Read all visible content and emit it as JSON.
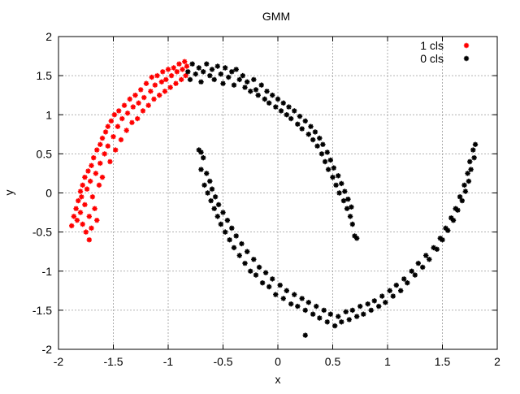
{
  "chart_data": {
    "type": "scatter",
    "title": "GMM",
    "xlabel": "x",
    "ylabel": "y",
    "xlim": [
      -2,
      2
    ],
    "ylim": [
      -2,
      2
    ],
    "x_ticks": [
      -2,
      -1.5,
      -1,
      -0.5,
      0,
      0.5,
      1,
      1.5,
      2
    ],
    "y_ticks": [
      -2,
      -1.5,
      -1,
      -0.5,
      0,
      0.5,
      1,
      1.5,
      2
    ],
    "grid": true,
    "legend_position": "top-right",
    "series": [
      {
        "name": "1 cls",
        "color": "#ff0000",
        "marker": "star",
        "points": [
          [
            -1.88,
            -0.42
          ],
          [
            -1.86,
            -0.3
          ],
          [
            -1.84,
            -0.2
          ],
          [
            -1.83,
            -0.35
          ],
          [
            -1.82,
            -0.1
          ],
          [
            -1.8,
            -0.25
          ],
          [
            -1.8,
            0.02
          ],
          [
            -1.79,
            -0.05
          ],
          [
            -1.78,
            0.1
          ],
          [
            -1.78,
            -0.4
          ],
          [
            -1.76,
            0.2
          ],
          [
            -1.76,
            -0.15
          ],
          [
            -1.75,
            -0.5
          ],
          [
            -1.74,
            0.05
          ],
          [
            -1.73,
            0.28
          ],
          [
            -1.72,
            -0.6
          ],
          [
            -1.72,
            -0.3
          ],
          [
            -1.71,
            0.15
          ],
          [
            -1.7,
            0.35
          ],
          [
            -1.7,
            -0.45
          ],
          [
            -1.69,
            -0.05
          ],
          [
            -1.68,
            0.45
          ],
          [
            -1.67,
            -0.2
          ],
          [
            -1.66,
            0.25
          ],
          [
            -1.65,
            0.55
          ],
          [
            -1.65,
            -0.35
          ],
          [
            -1.63,
            0.1
          ],
          [
            -1.62,
            0.62
          ],
          [
            -1.62,
            0.38
          ],
          [
            -1.6,
            0.7
          ],
          [
            -1.6,
            0.2
          ],
          [
            -1.58,
            0.5
          ],
          [
            -1.57,
            0.78
          ],
          [
            -1.55,
            0.6
          ],
          [
            -1.55,
            0.85
          ],
          [
            -1.53,
            0.4
          ],
          [
            -1.52,
            0.92
          ],
          [
            -1.5,
            0.72
          ],
          [
            -1.49,
            1.0
          ],
          [
            -1.48,
            0.55
          ],
          [
            -1.46,
            0.85
          ],
          [
            -1.45,
            1.05
          ],
          [
            -1.43,
            0.68
          ],
          [
            -1.42,
            0.95
          ],
          [
            -1.4,
            1.12
          ],
          [
            -1.38,
            0.8
          ],
          [
            -1.37,
            1.02
          ],
          [
            -1.35,
            1.2
          ],
          [
            -1.33,
            0.9
          ],
          [
            -1.32,
            1.1
          ],
          [
            -1.3,
            1.25
          ],
          [
            -1.28,
            0.95
          ],
          [
            -1.27,
            1.15
          ],
          [
            -1.25,
            1.32
          ],
          [
            -1.23,
            1.05
          ],
          [
            -1.22,
            1.22
          ],
          [
            -1.2,
            1.4
          ],
          [
            -1.18,
            1.12
          ],
          [
            -1.16,
            1.3
          ],
          [
            -1.15,
            1.48
          ],
          [
            -1.13,
            1.2
          ],
          [
            -1.12,
            1.38
          ],
          [
            -1.1,
            1.5
          ],
          [
            -1.08,
            1.25
          ],
          [
            -1.06,
            1.42
          ],
          [
            -1.05,
            1.55
          ],
          [
            -1.03,
            1.3
          ],
          [
            -1.02,
            1.45
          ],
          [
            -1.0,
            1.58
          ],
          [
            -0.98,
            1.35
          ],
          [
            -0.97,
            1.5
          ],
          [
            -0.95,
            1.6
          ],
          [
            -0.93,
            1.4
          ],
          [
            -0.92,
            1.55
          ],
          [
            -0.9,
            1.65
          ],
          [
            -0.88,
            1.45
          ],
          [
            -0.87,
            1.58
          ],
          [
            -0.85,
            1.68
          ],
          [
            -0.84,
            1.5
          ],
          [
            -0.83,
            1.62
          ]
        ]
      },
      {
        "name": "0 cls",
        "color": "#000000",
        "marker": "star",
        "points": [
          [
            -0.82,
            1.55
          ],
          [
            -0.8,
            1.45
          ],
          [
            -0.78,
            1.65
          ],
          [
            -0.75,
            1.52
          ],
          [
            -0.72,
            1.6
          ],
          [
            -0.7,
            1.42
          ],
          [
            -0.68,
            1.55
          ],
          [
            -0.65,
            1.65
          ],
          [
            -0.62,
            1.5
          ],
          [
            -0.6,
            1.58
          ],
          [
            -0.58,
            1.45
          ],
          [
            -0.55,
            1.62
          ],
          [
            -0.52,
            1.52
          ],
          [
            -0.5,
            1.4
          ],
          [
            -0.48,
            1.6
          ],
          [
            -0.45,
            1.48
          ],
          [
            -0.42,
            1.55
          ],
          [
            -0.4,
            1.38
          ],
          [
            -0.38,
            1.58
          ],
          [
            -0.35,
            1.45
          ],
          [
            -0.32,
            1.5
          ],
          [
            -0.3,
            1.35
          ],
          [
            -0.28,
            1.42
          ],
          [
            -0.25,
            1.3
          ],
          [
            -0.22,
            1.45
          ],
          [
            -0.2,
            1.32
          ],
          [
            -0.18,
            1.25
          ],
          [
            -0.15,
            1.38
          ],
          [
            -0.12,
            1.2
          ],
          [
            -0.1,
            1.3
          ],
          [
            -0.08,
            1.15
          ],
          [
            -0.05,
            1.25
          ],
          [
            -0.02,
            1.1
          ],
          [
            0.0,
            1.2
          ],
          [
            0.03,
            1.05
          ],
          [
            0.05,
            1.15
          ],
          [
            0.08,
            1.0
          ],
          [
            0.1,
            1.1
          ],
          [
            0.12,
            0.95
          ],
          [
            0.15,
            1.05
          ],
          [
            0.18,
            0.88
          ],
          [
            0.2,
            0.98
          ],
          [
            0.22,
            0.82
          ],
          [
            0.25,
            0.92
          ],
          [
            0.28,
            0.75
          ],
          [
            0.3,
            0.85
          ],
          [
            0.32,
            0.68
          ],
          [
            0.34,
            0.78
          ],
          [
            0.36,
            0.6
          ],
          [
            0.38,
            0.7
          ],
          [
            0.4,
            0.5
          ],
          [
            0.41,
            0.62
          ],
          [
            0.43,
            0.4
          ],
          [
            0.45,
            0.52
          ],
          [
            0.46,
            0.3
          ],
          [
            0.48,
            0.42
          ],
          [
            0.5,
            0.2
          ],
          [
            0.51,
            0.32
          ],
          [
            0.53,
            0.1
          ],
          [
            0.55,
            0.22
          ],
          [
            0.56,
            0.0
          ],
          [
            0.58,
            0.12
          ],
          [
            0.6,
            -0.1
          ],
          [
            0.61,
            0.02
          ],
          [
            0.63,
            -0.2
          ],
          [
            0.64,
            -0.08
          ],
          [
            0.66,
            -0.3
          ],
          [
            0.67,
            -0.18
          ],
          [
            0.68,
            -0.4
          ],
          [
            0.7,
            -0.55
          ],
          [
            -0.72,
            0.55
          ],
          [
            -0.7,
            0.3
          ],
          [
            -0.68,
            0.45
          ],
          [
            -0.67,
            0.1
          ],
          [
            -0.65,
            0.25
          ],
          [
            -0.64,
            0.0
          ],
          [
            -0.62,
            0.15
          ],
          [
            -0.61,
            -0.1
          ],
          [
            -0.6,
            0.05
          ],
          [
            -0.58,
            -0.2
          ],
          [
            -0.57,
            -0.05
          ],
          [
            -0.55,
            -0.3
          ],
          [
            -0.54,
            -0.15
          ],
          [
            -0.52,
            -0.4
          ],
          [
            -0.5,
            -0.25
          ],
          [
            -0.48,
            -0.5
          ],
          [
            -0.46,
            -0.35
          ],
          [
            -0.44,
            -0.6
          ],
          [
            -0.42,
            -0.45
          ],
          [
            -0.4,
            -0.7
          ],
          [
            -0.38,
            -0.55
          ],
          [
            -0.35,
            -0.8
          ],
          [
            -0.33,
            -0.65
          ],
          [
            -0.3,
            -0.9
          ],
          [
            -0.28,
            -0.75
          ],
          [
            -0.25,
            -1.0
          ],
          [
            -0.22,
            -0.85
          ],
          [
            -0.2,
            -1.05
          ],
          [
            -0.17,
            -0.95
          ],
          [
            -0.14,
            -1.15
          ],
          [
            -0.11,
            -1.02
          ],
          [
            -0.08,
            -1.2
          ],
          [
            -0.05,
            -1.1
          ],
          [
            -0.02,
            -1.3
          ],
          [
            0.02,
            -1.18
          ],
          [
            0.05,
            -1.35
          ],
          [
            0.08,
            -1.25
          ],
          [
            0.12,
            -1.42
          ],
          [
            0.15,
            -1.3
          ],
          [
            0.18,
            -1.45
          ],
          [
            0.22,
            -1.35
          ],
          [
            0.25,
            -1.5
          ],
          [
            0.28,
            -1.4
          ],
          [
            0.32,
            -1.55
          ],
          [
            0.35,
            -1.45
          ],
          [
            0.38,
            -1.6
          ],
          [
            0.42,
            -1.5
          ],
          [
            0.45,
            -1.65
          ],
          [
            0.48,
            -1.55
          ],
          [
            0.52,
            -1.7
          ],
          [
            0.55,
            -1.58
          ],
          [
            0.58,
            -1.65
          ],
          [
            0.62,
            -1.52
          ],
          [
            0.65,
            -1.62
          ],
          [
            0.68,
            -1.5
          ],
          [
            0.72,
            -1.58
          ],
          [
            0.75,
            -1.45
          ],
          [
            0.78,
            -1.55
          ],
          [
            0.82,
            -1.42
          ],
          [
            0.85,
            -1.5
          ],
          [
            0.88,
            -1.38
          ],
          [
            0.92,
            -1.45
          ],
          [
            0.95,
            -1.32
          ],
          [
            0.98,
            -1.4
          ],
          [
            1.02,
            -1.25
          ],
          [
            1.05,
            -1.32
          ],
          [
            1.08,
            -1.18
          ],
          [
            1.12,
            -1.25
          ],
          [
            1.15,
            -1.1
          ],
          [
            1.18,
            -1.15
          ],
          [
            1.22,
            -1.0
          ],
          [
            1.25,
            -1.05
          ],
          [
            1.28,
            -0.9
          ],
          [
            1.32,
            -0.95
          ],
          [
            1.35,
            -0.8
          ],
          [
            1.38,
            -0.85
          ],
          [
            1.42,
            -0.7
          ],
          [
            1.45,
            -0.72
          ],
          [
            1.48,
            -0.58
          ],
          [
            1.5,
            -0.6
          ],
          [
            1.53,
            -0.45
          ],
          [
            1.55,
            -0.48
          ],
          [
            1.58,
            -0.32
          ],
          [
            1.6,
            -0.35
          ],
          [
            1.62,
            -0.2
          ],
          [
            1.64,
            -0.22
          ],
          [
            1.66,
            -0.05
          ],
          [
            1.68,
            -0.1
          ],
          [
            1.7,
            0.1
          ],
          [
            1.71,
            0.02
          ],
          [
            1.73,
            0.25
          ],
          [
            1.74,
            0.15
          ],
          [
            1.75,
            0.4
          ],
          [
            1.76,
            0.3
          ],
          [
            1.78,
            0.55
          ],
          [
            1.79,
            0.45
          ],
          [
            1.8,
            0.62
          ],
          [
            0.25,
            -1.82
          ],
          [
            -0.7,
            0.52
          ],
          [
            0.72,
            -0.58
          ]
        ]
      }
    ]
  }
}
